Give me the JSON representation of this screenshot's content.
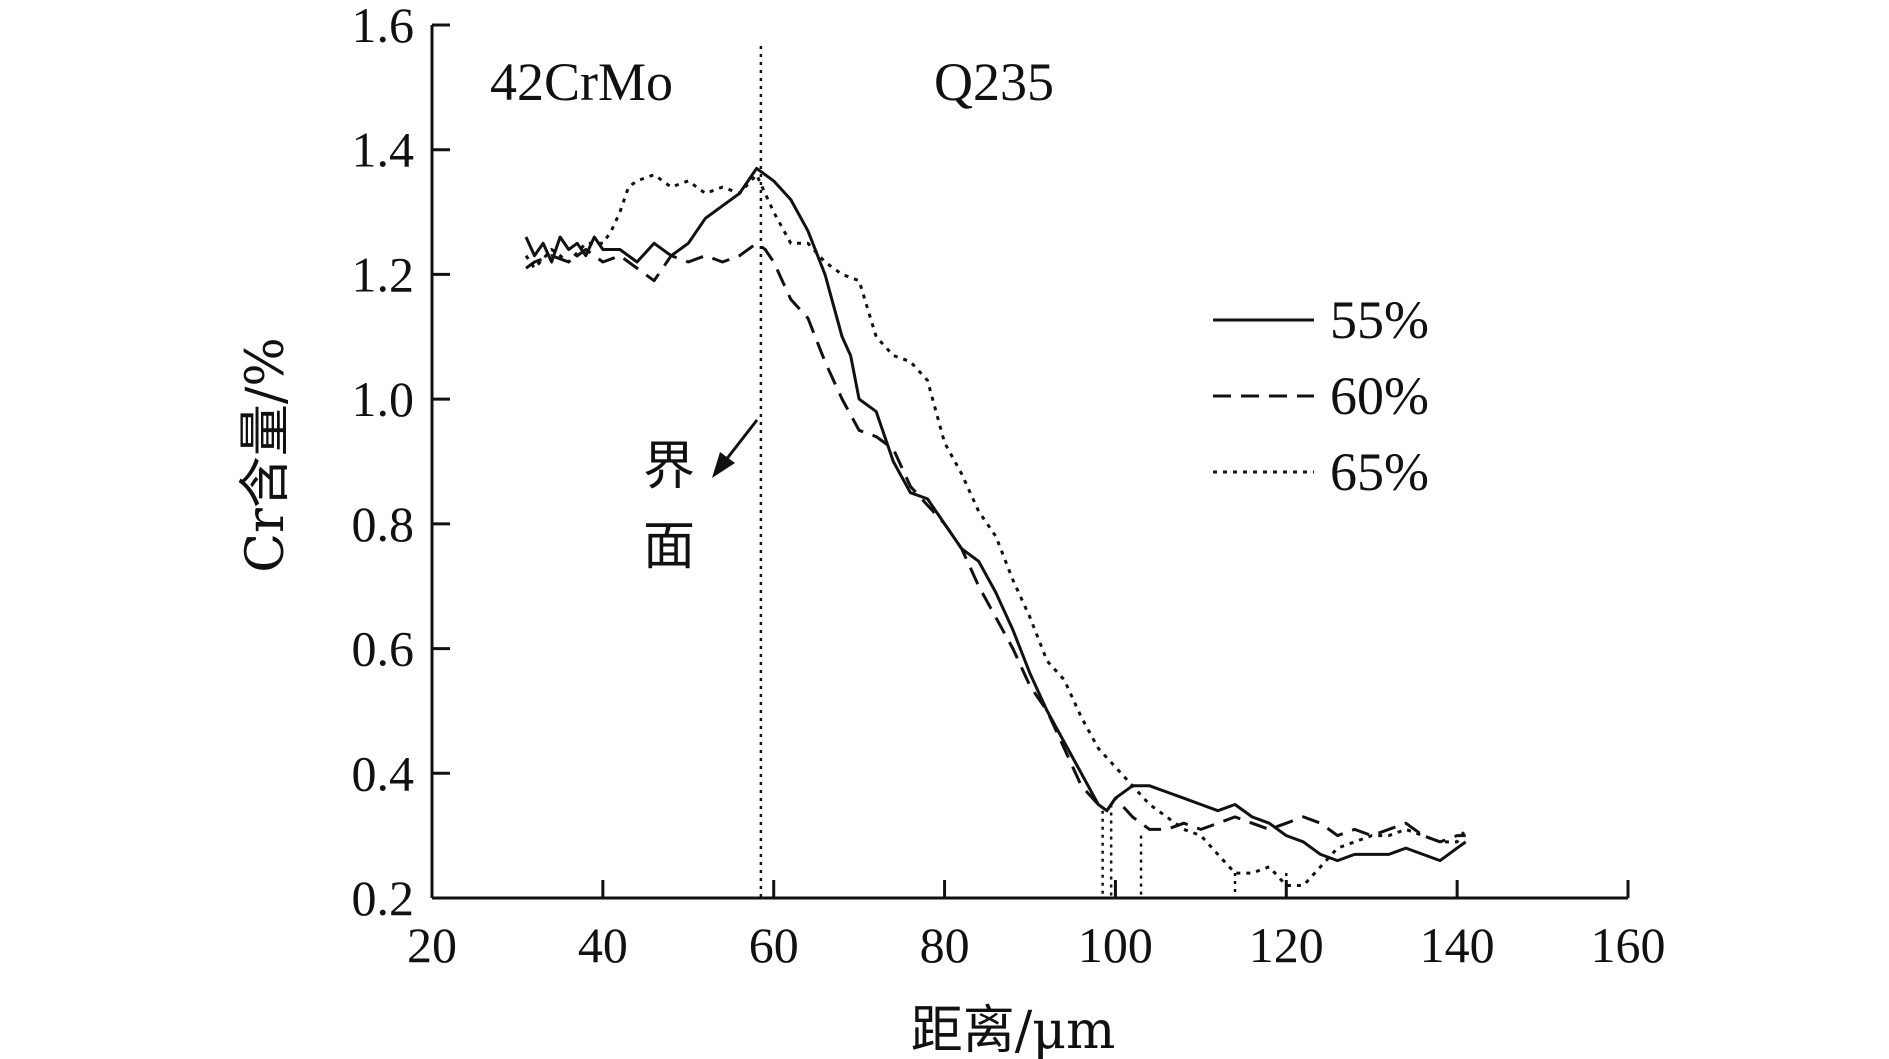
{
  "chart_data": {
    "type": "line",
    "title": "",
    "xlabel": "距离/μm",
    "ylabel": "Cr含量/%",
    "xlim": [
      20,
      160
    ],
    "ylim": [
      0.2,
      1.6
    ],
    "xticks": [
      "20",
      "40",
      "60",
      "80",
      "100",
      "120",
      "140",
      "160"
    ],
    "yticks": [
      "0.2",
      "0.4",
      "0.6",
      "0.8",
      "1.0",
      "1.2",
      "1.4",
      "1.6"
    ],
    "grid": false,
    "legend_position": "right",
    "annotations": {
      "left_region": "42CrMo",
      "right_region": "Q235",
      "interface_label_line1": "界",
      "interface_label_line2": "面",
      "interface_x": 58.5
    },
    "markers": [
      {
        "x": 98.5,
        "y": 0.34
      },
      {
        "x": 99.5,
        "y": 0.35
      },
      {
        "x": 103,
        "y": 0.3
      },
      {
        "x": 114,
        "y": 0.24
      },
      {
        "x": 120,
        "y": 0.24
      }
    ],
    "series": [
      {
        "name": "55%",
        "style": "solid",
        "x": [
          31,
          32,
          33,
          34,
          35,
          36,
          37,
          38,
          39,
          40,
          42,
          44,
          46,
          48,
          50,
          52,
          54,
          56,
          57,
          58,
          60,
          62,
          64,
          66,
          68,
          69,
          70,
          72,
          74,
          76,
          78,
          80,
          82,
          84,
          86,
          88,
          90,
          92,
          94,
          96,
          98,
          99,
          100,
          102,
          104,
          106,
          108,
          110,
          112,
          114,
          116,
          118,
          120,
          122,
          124,
          126,
          128,
          130,
          132,
          134,
          136,
          138,
          140,
          141
        ],
        "y": [
          1.26,
          1.23,
          1.25,
          1.22,
          1.26,
          1.24,
          1.25,
          1.23,
          1.26,
          1.24,
          1.24,
          1.22,
          1.25,
          1.23,
          1.25,
          1.29,
          1.31,
          1.33,
          1.35,
          1.37,
          1.35,
          1.32,
          1.27,
          1.2,
          1.1,
          1.07,
          1.0,
          0.98,
          0.9,
          0.85,
          0.84,
          0.8,
          0.76,
          0.74,
          0.69,
          0.63,
          0.56,
          0.5,
          0.45,
          0.4,
          0.35,
          0.34,
          0.36,
          0.38,
          0.38,
          0.37,
          0.36,
          0.35,
          0.34,
          0.35,
          0.33,
          0.32,
          0.3,
          0.29,
          0.27,
          0.26,
          0.27,
          0.27,
          0.27,
          0.28,
          0.27,
          0.26,
          0.28,
          0.29
        ]
      },
      {
        "name": "60%",
        "style": "dashed",
        "x": [
          31,
          32,
          34,
          36,
          38,
          40,
          42,
          44,
          46,
          48,
          50,
          52,
          54,
          56,
          58,
          59,
          60,
          62,
          64,
          66,
          68,
          70,
          72,
          74,
          76,
          78,
          80,
          82,
          84,
          86,
          88,
          90,
          92,
          94,
          96,
          98,
          99,
          100,
          102,
          104,
          106,
          108,
          110,
          112,
          114,
          116,
          118,
          120,
          122,
          124,
          126,
          128,
          130,
          132,
          134,
          136,
          138,
          140,
          141
        ],
        "y": [
          1.21,
          1.22,
          1.23,
          1.22,
          1.24,
          1.22,
          1.23,
          1.21,
          1.19,
          1.23,
          1.22,
          1.23,
          1.22,
          1.23,
          1.25,
          1.24,
          1.22,
          1.16,
          1.13,
          1.06,
          1.0,
          0.95,
          0.94,
          0.92,
          0.86,
          0.83,
          0.8,
          0.76,
          0.7,
          0.65,
          0.6,
          0.54,
          0.5,
          0.44,
          0.38,
          0.35,
          0.34,
          0.36,
          0.33,
          0.31,
          0.31,
          0.32,
          0.31,
          0.32,
          0.33,
          0.32,
          0.31,
          0.32,
          0.33,
          0.32,
          0.3,
          0.31,
          0.3,
          0.31,
          0.32,
          0.3,
          0.29,
          0.3,
          0.3
        ]
      },
      {
        "name": "65%",
        "style": "dotted",
        "x": [
          31,
          32,
          34,
          36,
          38,
          40,
          41,
          42,
          43,
          44,
          46,
          48,
          50,
          52,
          54,
          56,
          58,
          60,
          62,
          64,
          66,
          68,
          70,
          72,
          74,
          76,
          78,
          80,
          82,
          84,
          86,
          88,
          90,
          92,
          94,
          96,
          98,
          100,
          102,
          104,
          106,
          108,
          110,
          112,
          114,
          116,
          118,
          120,
          122,
          124,
          126,
          128,
          130,
          132,
          134,
          136,
          138,
          140,
          141
        ],
        "y": [
          1.23,
          1.21,
          1.24,
          1.22,
          1.25,
          1.25,
          1.27,
          1.3,
          1.34,
          1.35,
          1.36,
          1.34,
          1.35,
          1.33,
          1.34,
          1.33,
          1.36,
          1.3,
          1.25,
          1.25,
          1.22,
          1.2,
          1.19,
          1.1,
          1.07,
          1.06,
          1.03,
          0.93,
          0.88,
          0.82,
          0.78,
          0.71,
          0.65,
          0.58,
          0.55,
          0.49,
          0.44,
          0.41,
          0.38,
          0.35,
          0.33,
          0.31,
          0.3,
          0.27,
          0.24,
          0.24,
          0.25,
          0.22,
          0.22,
          0.25,
          0.28,
          0.29,
          0.3,
          0.3,
          0.31,
          0.3,
          0.29,
          0.29,
          0.31
        ]
      }
    ]
  }
}
